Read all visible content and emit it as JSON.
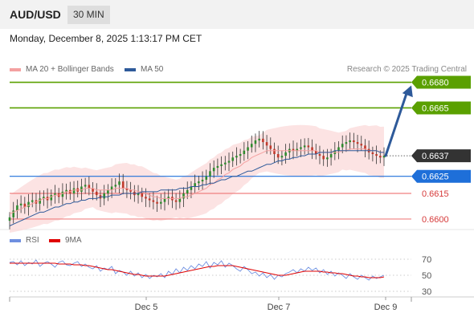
{
  "header": {
    "symbol": "AUD/USD",
    "timeframe": "30 MIN"
  },
  "datetime": "Monday, December 8, 2025 1:13:17 PM CET",
  "legend": {
    "ma20": "MA 20 + Bollinger Bands",
    "ma50": "MA 50",
    "rsi": "RSI",
    "rsi_ma": "9MA"
  },
  "credit": "Research © 2025 Trading Central",
  "colors": {
    "ma20": "#f4a1a1",
    "ma50": "#2e5a9a",
    "resistance": "#5aa000",
    "current": "#333333",
    "pivot": "#1e6fd9",
    "support": "#f08080",
    "rsi": "#6f8fe0",
    "rsi_ma": "#e00000",
    "bull_candle": "#2e8b2e",
    "bear_candle": "#c0392b"
  },
  "chart_data": [
    {
      "type": "line",
      "subtype": "candlestick-price",
      "symbol": "AUD/USD",
      "interval": "30 MIN",
      "ylim": [
        0.6592,
        0.6684
      ],
      "x_ticks": [
        "Dec 5",
        "Dec 7",
        "Dec 9"
      ],
      "levels": [
        {
          "label": "0.6680",
          "value": 0.668,
          "kind": "resistance"
        },
        {
          "label": "0.6665",
          "value": 0.6665,
          "kind": "resistance"
        },
        {
          "label": "0.6637",
          "value": 0.6637,
          "kind": "current"
        },
        {
          "label": "0.6625",
          "value": 0.6625,
          "kind": "pivot"
        },
        {
          "label": "0.6615",
          "value": 0.6615,
          "kind": "support"
        },
        {
          "label": "0.6600",
          "value": 0.66,
          "kind": "support"
        }
      ],
      "close_series": [
        0.6601,
        0.6605,
        0.6608,
        0.6609,
        0.6607,
        0.661,
        0.6611,
        0.6609,
        0.6612,
        0.6613,
        0.6611,
        0.6614,
        0.6615,
        0.6613,
        0.6616,
        0.6617,
        0.6615,
        0.6618,
        0.6616,
        0.6619,
        0.662,
        0.6618,
        0.6616,
        0.6614,
        0.6612,
        0.6615,
        0.6617,
        0.6619,
        0.662,
        0.6622,
        0.6618,
        0.6617,
        0.6616,
        0.6614,
        0.6615,
        0.6613,
        0.6612,
        0.6611,
        0.661,
        0.6609,
        0.661,
        0.6612,
        0.6613,
        0.6611,
        0.661,
        0.6612,
        0.6615,
        0.6617,
        0.6619,
        0.6621,
        0.6622,
        0.6623,
        0.6625,
        0.6628,
        0.663,
        0.6631,
        0.6632,
        0.6633,
        0.6634,
        0.6636,
        0.6637,
        0.6638,
        0.664,
        0.6642,
        0.6644,
        0.6646,
        0.6647,
        0.6645,
        0.6643,
        0.6641,
        0.6638,
        0.6636,
        0.6637,
        0.6639,
        0.6641,
        0.664,
        0.6641,
        0.6642,
        0.6643,
        0.6642,
        0.664,
        0.6638,
        0.6637,
        0.6635,
        0.6636,
        0.6638,
        0.664,
        0.6642,
        0.6644,
        0.6645,
        0.6646,
        0.6645,
        0.6644,
        0.6643,
        0.6641,
        0.6639,
        0.6638,
        0.6637,
        0.6636,
        0.6637
      ],
      "ma20": [
        0.6603,
        0.6604,
        0.6605,
        0.6606,
        0.6607,
        0.6608,
        0.6609,
        0.661,
        0.6611,
        0.6612,
        0.6612,
        0.6613,
        0.6614,
        0.6614,
        0.6615,
        0.6616,
        0.6616,
        0.6617,
        0.6617,
        0.6617,
        0.6618,
        0.6618,
        0.6618,
        0.6617,
        0.6617,
        0.6617,
        0.6617,
        0.6617,
        0.6618,
        0.6618,
        0.6618,
        0.6618,
        0.6617,
        0.6617,
        0.6616,
        0.6616,
        0.6615,
        0.6614,
        0.6613,
        0.6613,
        0.6612,
        0.6612,
        0.6612,
        0.6612,
        0.6612,
        0.6612,
        0.6613,
        0.6613,
        0.6614,
        0.6615,
        0.6616,
        0.6617,
        0.6618,
        0.662,
        0.6621,
        0.6623,
        0.6624,
        0.6626,
        0.6627,
        0.6629,
        0.663,
        0.6631,
        0.6633,
        0.6634,
        0.6636,
        0.6637,
        0.6638,
        0.6639,
        0.664,
        0.664,
        0.664,
        0.664,
        0.664,
        0.664,
        0.664,
        0.664,
        0.664,
        0.664,
        0.664,
        0.664,
        0.664,
        0.664,
        0.6639,
        0.6639,
        0.6639,
        0.6639,
        0.6639,
        0.6639,
        0.664,
        0.664,
        0.6641,
        0.6641,
        0.6641,
        0.6641,
        0.6641,
        0.664,
        0.664,
        0.664,
        0.6639,
        0.6639
      ],
      "ma50": [
        0.6596,
        0.6597,
        0.6598,
        0.6599,
        0.66,
        0.6601,
        0.6602,
        0.6603,
        0.6604,
        0.6604,
        0.6605,
        0.6606,
        0.6607,
        0.6607,
        0.6608,
        0.6609,
        0.6609,
        0.661,
        0.661,
        0.6611,
        0.6611,
        0.6612,
        0.6612,
        0.6612,
        0.6613,
        0.6613,
        0.6613,
        0.6614,
        0.6614,
        0.6614,
        0.6615,
        0.6615,
        0.6615,
        0.6615,
        0.6615,
        0.6616,
        0.6616,
        0.6616,
        0.6616,
        0.6616,
        0.6617,
        0.6617,
        0.6617,
        0.6617,
        0.6617,
        0.6618,
        0.6618,
        0.6618,
        0.6619,
        0.6619,
        0.6619,
        0.662,
        0.662,
        0.6621,
        0.6621,
        0.6622,
        0.6623,
        0.6623,
        0.6624,
        0.6625,
        0.6625,
        0.6626,
        0.6627,
        0.6628,
        0.6628,
        0.6629,
        0.663,
        0.6631,
        0.6632,
        0.6632,
        0.6633,
        0.6634,
        0.6634,
        0.6635,
        0.6635,
        0.6636,
        0.6636,
        0.6637,
        0.6637,
        0.6638,
        0.6638,
        0.6638,
        0.6639,
        0.6639,
        0.6639,
        0.6639,
        0.664,
        0.664,
        0.664,
        0.664,
        0.664,
        0.664,
        0.664,
        0.664,
        0.664,
        0.664,
        0.664,
        0.664,
        0.6639,
        0.6639
      ],
      "forecast_target": 0.668
    },
    {
      "type": "line",
      "subtype": "rsi-indicator",
      "ylim": [
        25,
        80
      ],
      "levels": [
        70,
        50,
        30
      ],
      "rsi": [
        66,
        67,
        63,
        68,
        62,
        66,
        64,
        69,
        61,
        65,
        67,
        64,
        60,
        66,
        68,
        63,
        62,
        65,
        67,
        61,
        64,
        60,
        58,
        62,
        55,
        59,
        57,
        61,
        52,
        56,
        54,
        50,
        55,
        49,
        53,
        47,
        51,
        46,
        50,
        48,
        52,
        47,
        55,
        51,
        58,
        53,
        60,
        56,
        62,
        58,
        64,
        61,
        67,
        59,
        66,
        63,
        68,
        60,
        65,
        62,
        58,
        55,
        61,
        57,
        52,
        54,
        49,
        53,
        47,
        51,
        45,
        50,
        48,
        52,
        54,
        57,
        53,
        58,
        55,
        60,
        56,
        59,
        53,
        57,
        51,
        55,
        49,
        53,
        50,
        46,
        52,
        48,
        45,
        50,
        47,
        44,
        49,
        46,
        48,
        50
      ],
      "rsi_ma": [
        65,
        65,
        65,
        65,
        65,
        65,
        65,
        65,
        65,
        65,
        65,
        65,
        65,
        64,
        64,
        64,
        64,
        63,
        63,
        63,
        62,
        62,
        61,
        60,
        59,
        58,
        57,
        57,
        56,
        55,
        54,
        53,
        52,
        51,
        51,
        50,
        49,
        49,
        49,
        49,
        49,
        49,
        50,
        51,
        52,
        53,
        54,
        55,
        56,
        57,
        58,
        59,
        60,
        61,
        61,
        62,
        62,
        62,
        62,
        62,
        61,
        60,
        59,
        58,
        57,
        56,
        55,
        54,
        53,
        52,
        51,
        50,
        50,
        50,
        51,
        52,
        53,
        54,
        55,
        55,
        55,
        55,
        55,
        54,
        54,
        53,
        53,
        52,
        52,
        51,
        50,
        49,
        49,
        48,
        48,
        47,
        47,
        47,
        47,
        48
      ]
    }
  ]
}
